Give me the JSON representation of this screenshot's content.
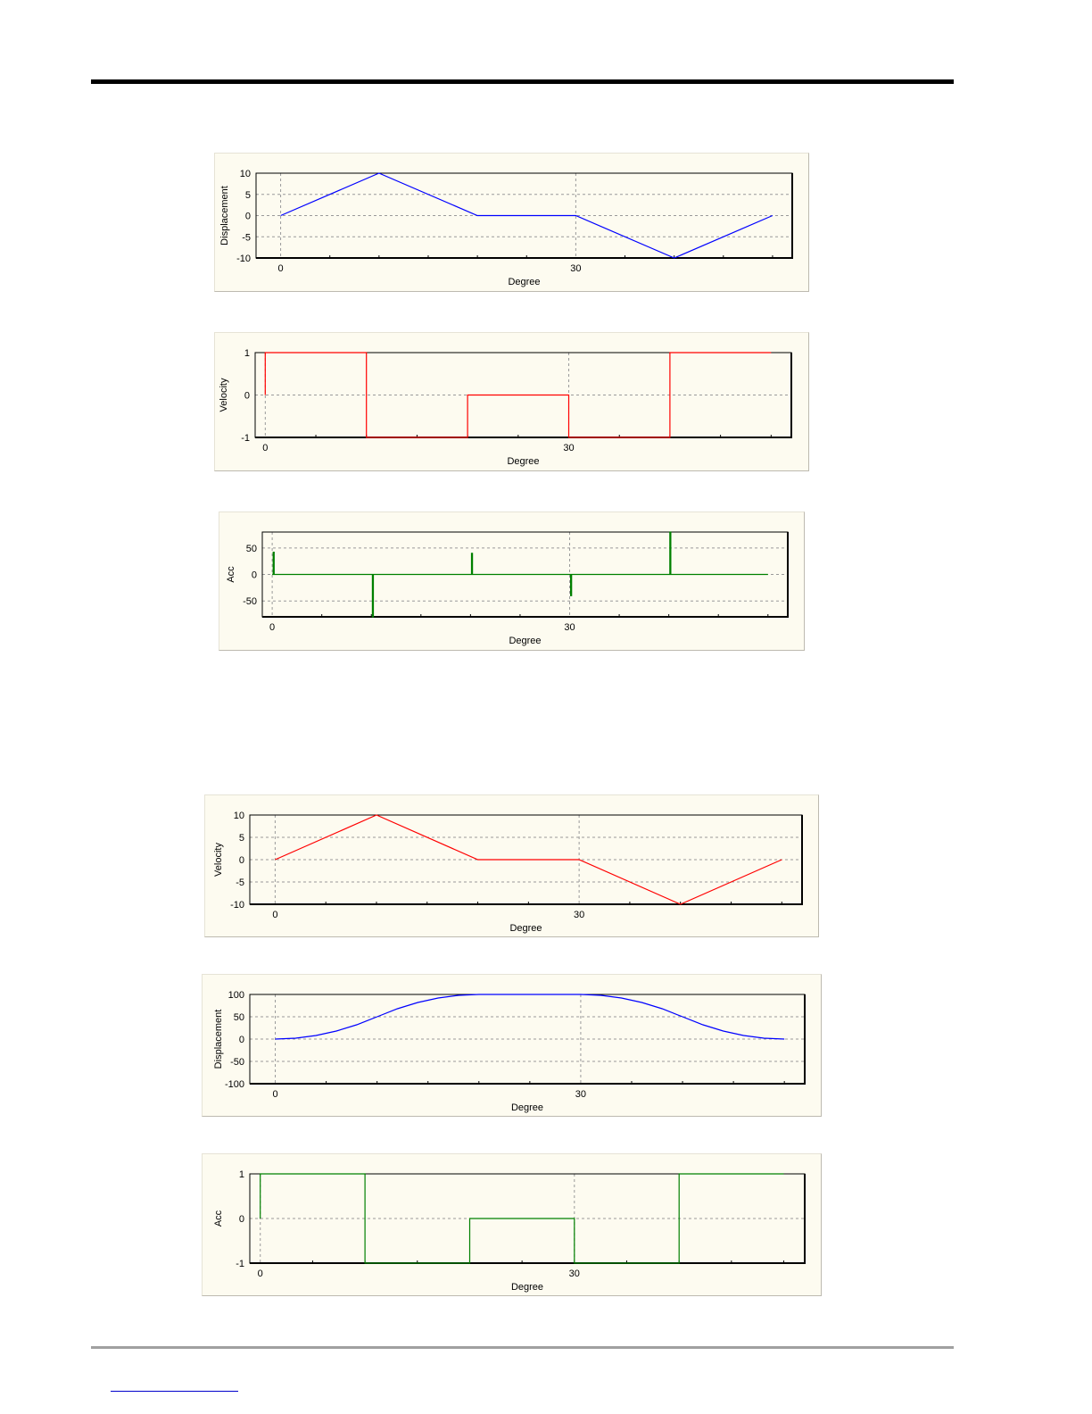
{
  "page": {
    "colors": {
      "panel_bg": "#fdfbf0",
      "frame": "#000000",
      "grid": "#9a9a9a",
      "link": "#0000cc"
    }
  },
  "chart_data": [
    {
      "type": "line",
      "xlabel": "Degree",
      "ylabel": "Displacement",
      "xticks": [
        0,
        30
      ],
      "yticks": [
        10,
        5,
        0,
        -5,
        -10
      ],
      "ylim": [
        -10,
        10
      ],
      "xlim": [
        -2.5,
        52
      ],
      "grid": true,
      "series": [
        {
          "color": "#0000ff",
          "x": [
            0,
            10,
            20,
            30,
            40,
            50
          ],
          "y": [
            0,
            10,
            0,
            0,
            -10,
            0
          ]
        }
      ]
    },
    {
      "type": "line",
      "xlabel": "Degree",
      "ylabel": "Velocity",
      "xticks": [
        0,
        30
      ],
      "yticks": [
        1,
        0,
        -1
      ],
      "ylim": [
        -1,
        1
      ],
      "xlim": [
        -1,
        52
      ],
      "grid": true,
      "series": [
        {
          "color": "#ff0000",
          "x": [
            0,
            0,
            10,
            10,
            20,
            20,
            30,
            30,
            40,
            40,
            50
          ],
          "y": [
            0,
            1,
            1,
            -1,
            -1,
            0,
            0,
            -1,
            -1,
            1,
            1
          ]
        }
      ]
    },
    {
      "type": "line",
      "xlabel": "Degree",
      "ylabel": "Acc",
      "xticks": [
        0,
        30
      ],
      "yticks": [
        50,
        0,
        -50
      ],
      "ylim": [
        -80,
        80
      ],
      "xlim": [
        -1,
        52
      ],
      "grid": true,
      "series": [
        {
          "color": "#008000",
          "x": [
            0,
            0.1,
            0.1,
            0.2,
            0.2,
            10,
            10.1,
            10.1,
            10.2,
            10.2,
            20,
            20.1,
            20.1,
            20.2,
            20.2,
            30,
            30.1,
            30.1,
            30.2,
            30.2,
            40,
            40.1,
            40.1,
            40.2,
            40.2,
            50
          ],
          "y": [
            0,
            0,
            42,
            42,
            0,
            0,
            0,
            -80,
            -80,
            0,
            0,
            0,
            40,
            40,
            0,
            0,
            0,
            -40,
            -40,
            0,
            0,
            0,
            80,
            80,
            0,
            0
          ]
        }
      ]
    },
    {
      "type": "line",
      "xlabel": "Degree",
      "ylabel": "Velocity",
      "xticks": [
        0,
        30
      ],
      "yticks": [
        10,
        5,
        0,
        -5,
        -10
      ],
      "ylim": [
        -10,
        10
      ],
      "xlim": [
        -2.5,
        52
      ],
      "grid": true,
      "series": [
        {
          "color": "#ff0000",
          "x": [
            0,
            10,
            20,
            30,
            40,
            50
          ],
          "y": [
            0,
            10,
            0,
            0,
            -10,
            0
          ]
        }
      ]
    },
    {
      "type": "line",
      "xlabel": "Degree",
      "ylabel": "Displacement",
      "xticks": [
        0,
        30
      ],
      "yticks": [
        100,
        50,
        0,
        -50,
        -100
      ],
      "ylim": [
        -100,
        100
      ],
      "xlim": [
        -2.5,
        52
      ],
      "grid": true,
      "series": [
        {
          "color": "#0000ff",
          "x": [
            0,
            2,
            4,
            6,
            8,
            10,
            12,
            14,
            16,
            18,
            20,
            25,
            30,
            32,
            34,
            36,
            38,
            40,
            42,
            44,
            46,
            48,
            50
          ],
          "y": [
            0,
            2,
            8,
            18,
            32,
            50,
            68,
            82,
            92,
            98,
            100,
            100,
            100,
            98,
            92,
            82,
            68,
            50,
            32,
            18,
            8,
            2,
            0
          ]
        }
      ]
    },
    {
      "type": "line",
      "xlabel": "Degree",
      "ylabel": "Acc",
      "xticks": [
        0,
        30
      ],
      "yticks": [
        1,
        0,
        -1
      ],
      "ylim": [
        -1,
        1
      ],
      "xlim": [
        -1,
        52
      ],
      "grid": true,
      "series": [
        {
          "color": "#008000",
          "x": [
            0,
            0,
            10,
            10,
            20,
            20,
            30,
            30,
            40,
            40,
            50
          ],
          "y": [
            0,
            1,
            1,
            -1,
            -1,
            0,
            0,
            -1,
            -1,
            1,
            1
          ]
        }
      ]
    }
  ]
}
